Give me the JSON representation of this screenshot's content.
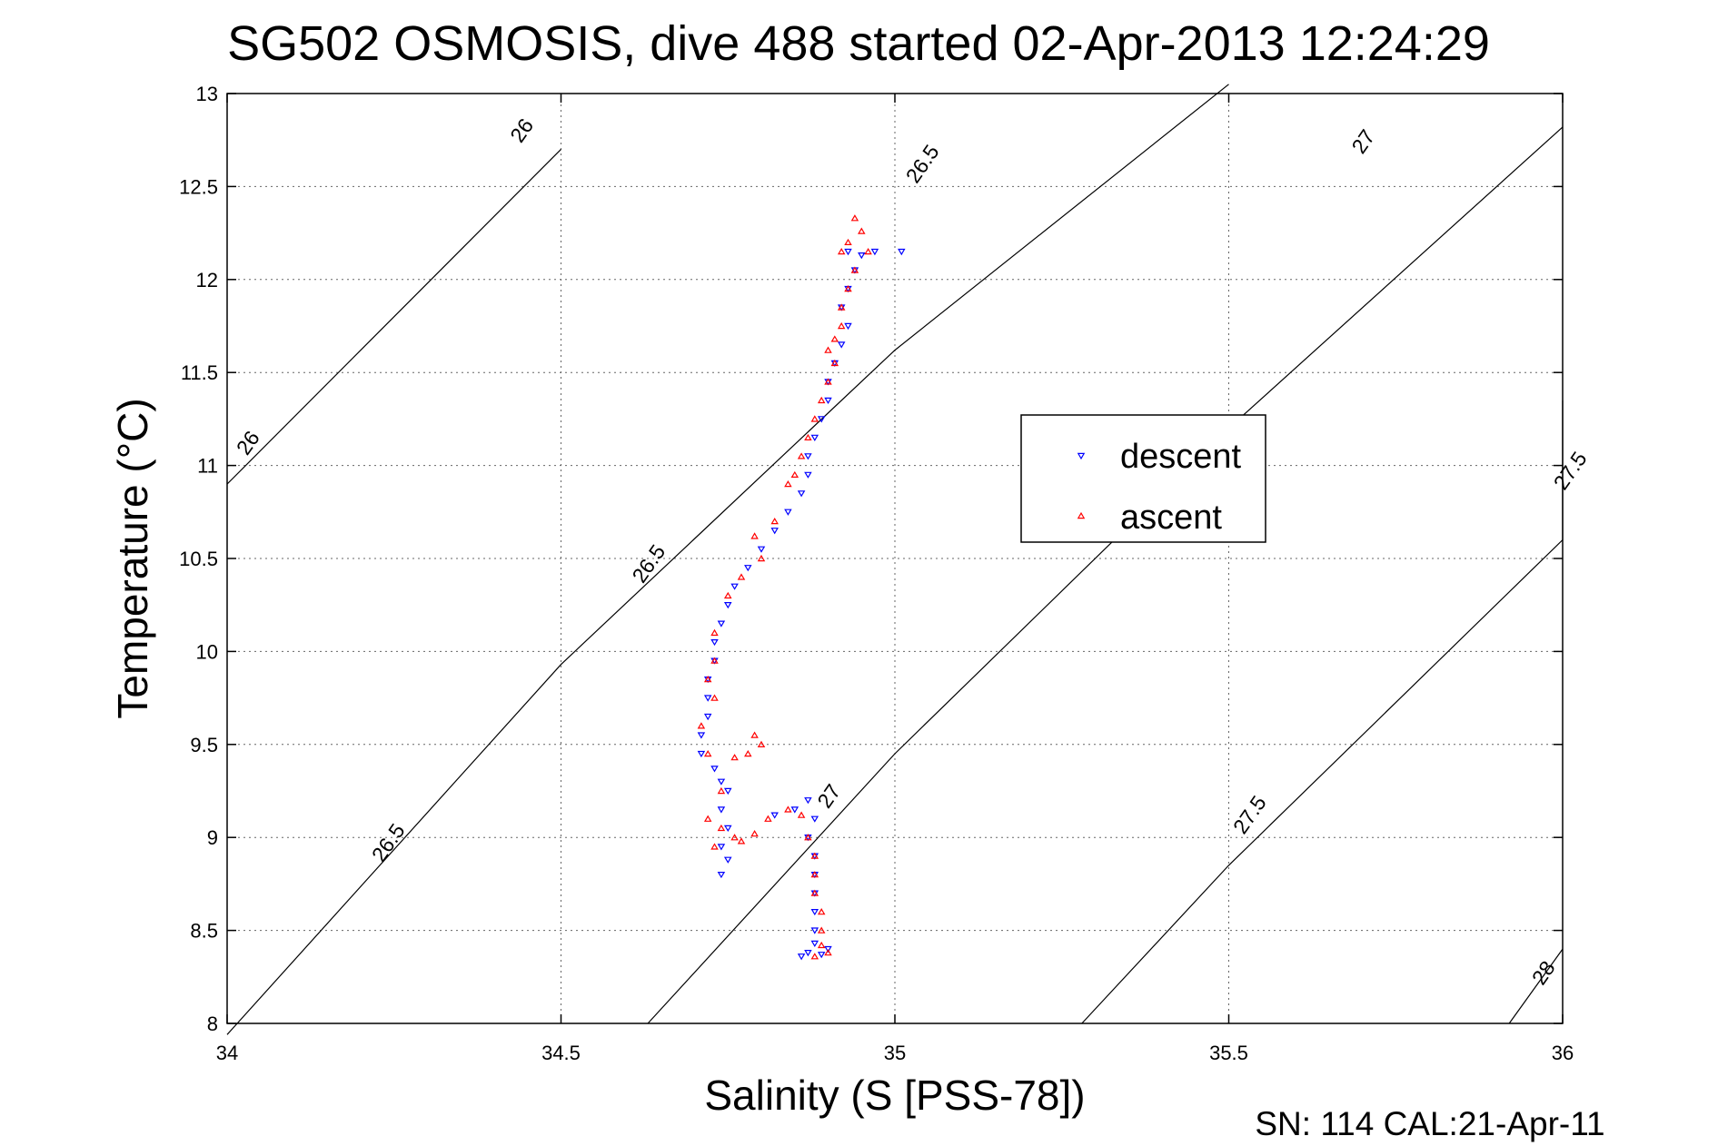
{
  "chart_data": {
    "type": "scatter",
    "title": "SG502 OSMOSIS, dive 488 started 02-Apr-2013 12:24:29",
    "xlabel": "Salinity (S [PSS-78])",
    "ylabel": "Temperature (°C)",
    "xlim": [
      34,
      36
    ],
    "ylim": [
      8,
      13
    ],
    "grid": true,
    "x_ticks": [
      "34",
      "34.5",
      "35",
      "35.5",
      "36"
    ],
    "y_ticks": [
      "8",
      "8.5",
      "9",
      "9.5",
      "10",
      "10.5",
      "11",
      "11.5",
      "12",
      "12.5",
      "13"
    ],
    "legend_position": "right",
    "footer": "SN: 114  CAL:21-Apr-11",
    "density_contours": [
      {
        "label": "26",
        "points": [
          [
            34.0,
            10.9
          ],
          [
            34.5,
            12.7
          ]
        ],
        "label_positions": [
          [
            34.45,
            12.78
          ],
          [
            34.04,
            11.1
          ]
        ]
      },
      {
        "label": "26.5",
        "points": [
          [
            34.0,
            7.94
          ],
          [
            34.5,
            9.93
          ],
          [
            35.0,
            11.62
          ],
          [
            35.5,
            13.05
          ]
        ],
        "label_positions": [
          [
            34.25,
            8.95
          ],
          [
            34.64,
            10.45
          ],
          [
            35.05,
            12.6
          ]
        ]
      },
      {
        "label": "27",
        "points": [
          [
            34.63,
            8.0
          ],
          [
            35.0,
            9.45
          ],
          [
            35.5,
            11.2
          ],
          [
            36.0,
            12.82
          ]
        ],
        "label_positions": [
          [
            34.91,
            9.2
          ],
          [
            35.71,
            12.72
          ]
        ]
      },
      {
        "label": "27.5",
        "points": [
          [
            35.28,
            8.0
          ],
          [
            35.5,
            8.85
          ],
          [
            36.0,
            10.6
          ],
          [
            36.0,
            11.35
          ]
        ],
        "label_positions": [
          [
            35.54,
            9.1
          ],
          [
            36.02,
            10.95
          ]
        ]
      },
      {
        "label": "28",
        "points": [
          [
            35.92,
            8.0
          ],
          [
            36.0,
            8.4
          ]
        ],
        "label_positions": [
          [
            35.98,
            8.25
          ]
        ]
      }
    ],
    "series": [
      {
        "name": "descent",
        "color": "#0000ff",
        "marker": "triangle-down",
        "points": [
          [
            34.93,
            12.15
          ],
          [
            34.97,
            12.15
          ],
          [
            35.01,
            12.15
          ],
          [
            34.95,
            12.13
          ],
          [
            34.94,
            12.05
          ],
          [
            34.93,
            11.95
          ],
          [
            34.92,
            11.85
          ],
          [
            34.93,
            11.75
          ],
          [
            34.92,
            11.65
          ],
          [
            34.91,
            11.55
          ],
          [
            34.9,
            11.45
          ],
          [
            34.9,
            11.35
          ],
          [
            34.89,
            11.25
          ],
          [
            34.88,
            11.15
          ],
          [
            34.87,
            11.05
          ],
          [
            34.87,
            10.95
          ],
          [
            34.86,
            10.85
          ],
          [
            34.84,
            10.75
          ],
          [
            34.82,
            10.65
          ],
          [
            34.8,
            10.55
          ],
          [
            34.78,
            10.45
          ],
          [
            34.76,
            10.35
          ],
          [
            34.75,
            10.25
          ],
          [
            34.74,
            10.15
          ],
          [
            34.73,
            10.05
          ],
          [
            34.73,
            9.95
          ],
          [
            34.72,
            9.85
          ],
          [
            34.72,
            9.75
          ],
          [
            34.72,
            9.65
          ],
          [
            34.71,
            9.55
          ],
          [
            34.71,
            9.45
          ],
          [
            34.73,
            9.37
          ],
          [
            34.74,
            9.3
          ],
          [
            34.75,
            9.25
          ],
          [
            34.74,
            9.15
          ],
          [
            34.75,
            9.05
          ],
          [
            34.74,
            8.95
          ],
          [
            34.75,
            8.88
          ],
          [
            34.74,
            8.8
          ],
          [
            34.87,
            9.2
          ],
          [
            34.88,
            9.1
          ],
          [
            34.87,
            9.0
          ],
          [
            34.88,
            8.9
          ],
          [
            34.88,
            8.8
          ],
          [
            34.88,
            8.7
          ],
          [
            34.88,
            8.6
          ],
          [
            34.88,
            8.5
          ],
          [
            34.88,
            8.43
          ],
          [
            34.87,
            8.38
          ],
          [
            34.89,
            8.37
          ],
          [
            34.86,
            8.36
          ],
          [
            34.9,
            8.4
          ],
          [
            34.85,
            9.15
          ],
          [
            34.82,
            9.12
          ]
        ]
      },
      {
        "name": "ascent",
        "color": "#ff0000",
        "marker": "triangle-up",
        "points": [
          [
            34.94,
            12.33
          ],
          [
            34.95,
            12.26
          ],
          [
            34.93,
            12.2
          ],
          [
            34.96,
            12.15
          ],
          [
            34.92,
            12.15
          ],
          [
            34.94,
            12.05
          ],
          [
            34.93,
            11.95
          ],
          [
            34.92,
            11.85
          ],
          [
            34.92,
            11.75
          ],
          [
            34.91,
            11.68
          ],
          [
            34.9,
            11.62
          ],
          [
            34.91,
            11.55
          ],
          [
            34.9,
            11.45
          ],
          [
            34.89,
            11.35
          ],
          [
            34.88,
            11.25
          ],
          [
            34.87,
            11.15
          ],
          [
            34.86,
            11.05
          ],
          [
            34.85,
            10.95
          ],
          [
            34.84,
            10.9
          ],
          [
            34.82,
            10.7
          ],
          [
            34.79,
            10.62
          ],
          [
            34.8,
            10.5
          ],
          [
            34.77,
            10.4
          ],
          [
            34.75,
            10.3
          ],
          [
            34.73,
            10.1
          ],
          [
            34.73,
            9.95
          ],
          [
            34.72,
            9.85
          ],
          [
            34.73,
            9.75
          ],
          [
            34.71,
            9.6
          ],
          [
            34.72,
            9.45
          ],
          [
            34.76,
            9.43
          ],
          [
            34.79,
            9.55
          ],
          [
            34.8,
            9.5
          ],
          [
            34.78,
            9.45
          ],
          [
            34.74,
            9.25
          ],
          [
            34.72,
            9.1
          ],
          [
            34.74,
            9.05
          ],
          [
            34.77,
            8.98
          ],
          [
            34.79,
            9.02
          ],
          [
            34.81,
            9.1
          ],
          [
            34.84,
            9.15
          ],
          [
            34.86,
            9.12
          ],
          [
            34.87,
            9.0
          ],
          [
            34.88,
            8.9
          ],
          [
            34.88,
            8.8
          ],
          [
            34.88,
            8.7
          ],
          [
            34.89,
            8.6
          ],
          [
            34.89,
            8.5
          ],
          [
            34.89,
            8.42
          ],
          [
            34.9,
            8.38
          ],
          [
            34.88,
            8.36
          ],
          [
            34.76,
            9.0
          ],
          [
            34.73,
            8.95
          ]
        ]
      }
    ]
  }
}
